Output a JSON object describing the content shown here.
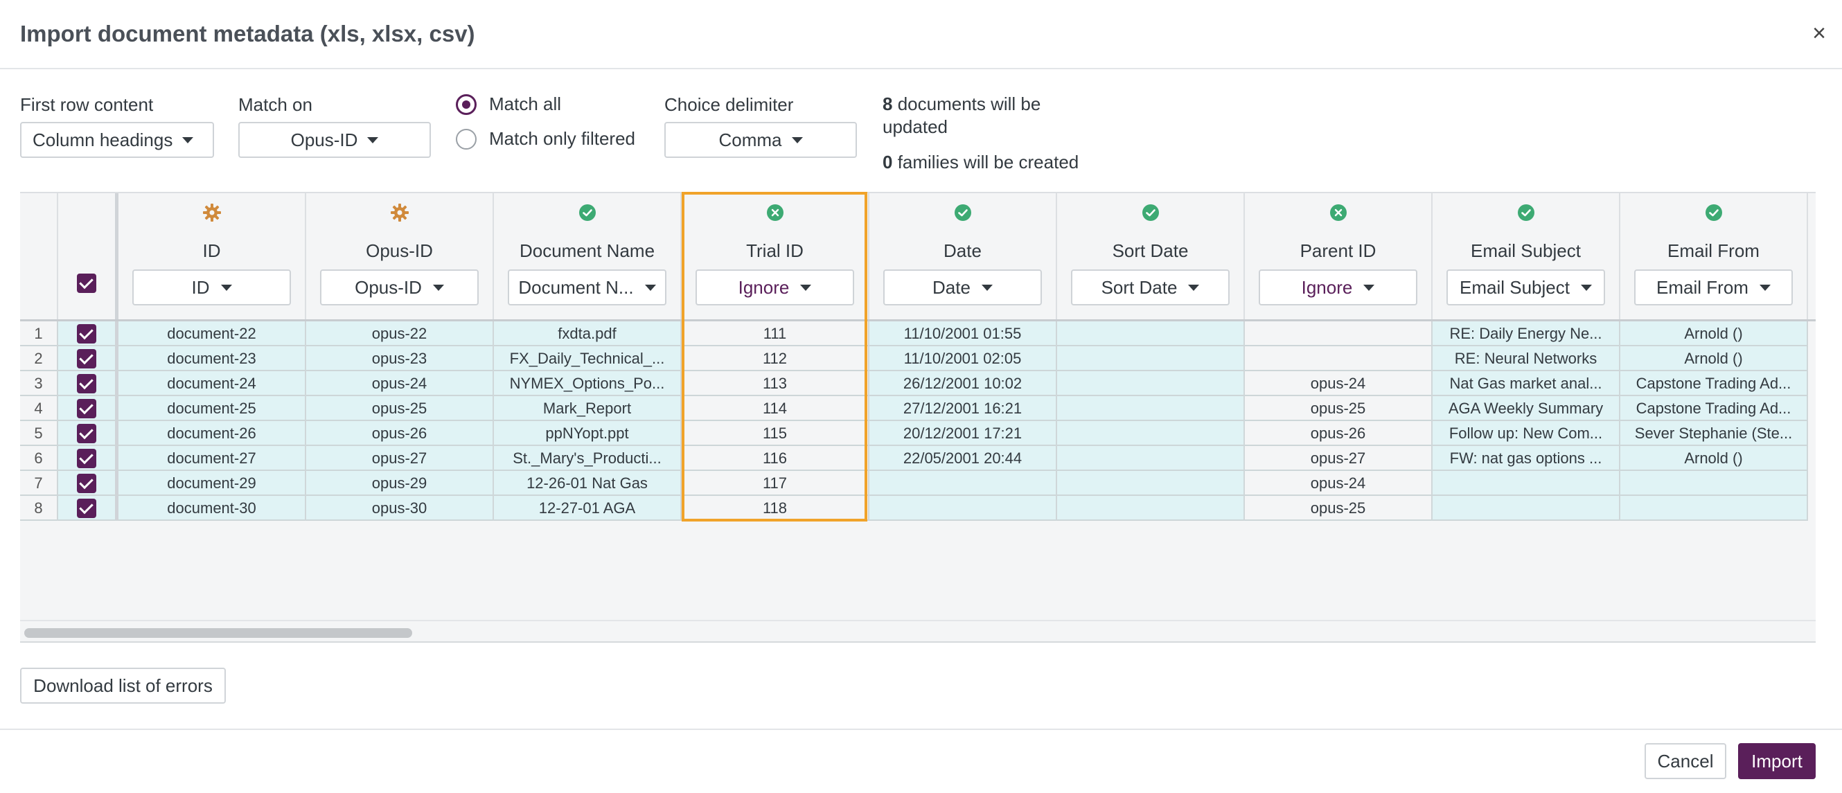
{
  "modal": {
    "title": "Import document metadata (xls, xlsx, csv)",
    "close_label": "×"
  },
  "options": {
    "first_row": {
      "label": "First row content",
      "value": "Column headings"
    },
    "match_on": {
      "label": "Match on",
      "value": "Opus-ID"
    },
    "match_mode": {
      "all": "Match all",
      "filtered": "Match only filtered",
      "selected": "all"
    },
    "delimiter": {
      "label": "Choice delimiter",
      "value": "Comma"
    }
  },
  "summary": {
    "docs_count": "8",
    "docs_text_1": " documents will be",
    "docs_text_2": "updated",
    "families_count": "0",
    "families_text": " families will be created"
  },
  "columns": [
    {
      "label": "ID",
      "select": "ID",
      "status": "gear"
    },
    {
      "label": "Opus-ID",
      "select": "Opus-ID",
      "status": "gear"
    },
    {
      "label": "Document Name",
      "select": "Document N...",
      "status": "check"
    },
    {
      "label": "Trial ID",
      "select": "Ignore",
      "status": "cross"
    },
    {
      "label": "Date",
      "select": "Date",
      "status": "check"
    },
    {
      "label": "Sort Date",
      "select": "Sort Date",
      "status": "check"
    },
    {
      "label": "Parent ID",
      "select": "Ignore",
      "status": "cross"
    },
    {
      "label": "Email Subject",
      "select": "Email Subject",
      "status": "check"
    },
    {
      "label": "Email From",
      "select": "Email From",
      "status": "check"
    }
  ],
  "rows": [
    {
      "n": "1",
      "cells": [
        "document-22",
        "opus-22",
        "fxdta.pdf",
        "111",
        "11/10/2001 01:55",
        "",
        "",
        "RE: Daily Energy Ne...",
        "Arnold ()"
      ]
    },
    {
      "n": "2",
      "cells": [
        "document-23",
        "opus-23",
        "FX_Daily_Technical_...",
        "112",
        "11/10/2001 02:05",
        "",
        "",
        "RE: Neural Networks",
        "Arnold ()"
      ]
    },
    {
      "n": "3",
      "cells": [
        "document-24",
        "opus-24",
        "NYMEX_Options_Po...",
        "113",
        "26/12/2001 10:02",
        "",
        "opus-24",
        "Nat Gas market anal...",
        "Capstone Trading Ad..."
      ]
    },
    {
      "n": "4",
      "cells": [
        "document-25",
        "opus-25",
        "Mark_Report",
        "114",
        "27/12/2001 16:21",
        "",
        "opus-25",
        "AGA Weekly Summary",
        "Capstone Trading Ad..."
      ]
    },
    {
      "n": "5",
      "cells": [
        "document-26",
        "opus-26",
        "ppNYopt.ppt",
        "115",
        "20/12/2001 17:21",
        "",
        "opus-26",
        "Follow up: New Com...",
        "Sever Stephanie (Ste..."
      ]
    },
    {
      "n": "6",
      "cells": [
        "document-27",
        "opus-27",
        "St._Mary's_Producti...",
        "116",
        "22/05/2001 20:44",
        "",
        "opus-27",
        "FW: nat gas options ...",
        "Arnold ()"
      ]
    },
    {
      "n": "7",
      "cells": [
        "document-29",
        "opus-29",
        "12-26-01 Nat Gas",
        "117",
        "",
        "",
        "opus-24",
        "",
        ""
      ]
    },
    {
      "n": "8",
      "cells": [
        "document-30",
        "opus-30",
        "12-27-01 AGA",
        "118",
        "",
        "",
        "opus-25",
        "",
        ""
      ]
    }
  ],
  "footer": {
    "download_errors": "Download list of errors",
    "cancel": "Cancel",
    "import": "Import"
  },
  "colors": {
    "accent": "#5a1f5a",
    "ok": "#3daa73",
    "warn": "#d08a3c",
    "highlight": "#f0a32a",
    "row_bg": "#e0f3f5"
  }
}
